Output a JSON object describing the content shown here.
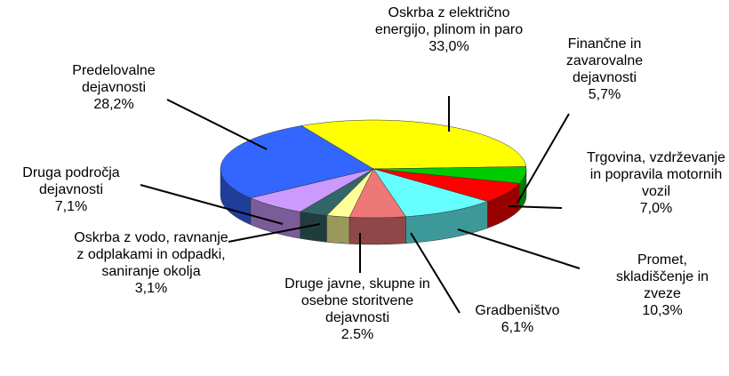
{
  "chart_data": {
    "type": "pie3d",
    "categories": [
      "Oskrba z električno energijo, plinom in paro",
      "Finančne in zavarovalne dejavnosti",
      "Trgovina, vzdrževanje in popravila motornih vozil",
      "Promet, skladiščenje in zveze",
      "Gradbeništvo",
      "Druge javne, skupne in osebne storitvene dejavnosti",
      "Oskrba z vodo, ravnanje z odplakami in odpadki, saniranje okolja",
      "Druga področja dejavnosti",
      "Predelovalne dejavnosti"
    ],
    "values": [
      33.0,
      5.7,
      7.0,
      10.3,
      6.1,
      2.5,
      3.1,
      7.1,
      28.2
    ],
    "value_labels": [
      "33,0%",
      "5,7%",
      "7,0%",
      "10,3%",
      "6,1%",
      "2.5%",
      "3,1%",
      "7,1%",
      "28,2%"
    ],
    "colors": [
      "#ffff00",
      "#00cc00",
      "#ff0000",
      "#66ffff",
      "#ee7777",
      "#ffff99",
      "#336666",
      "#cc99ff",
      "#3366ff"
    ]
  }
}
